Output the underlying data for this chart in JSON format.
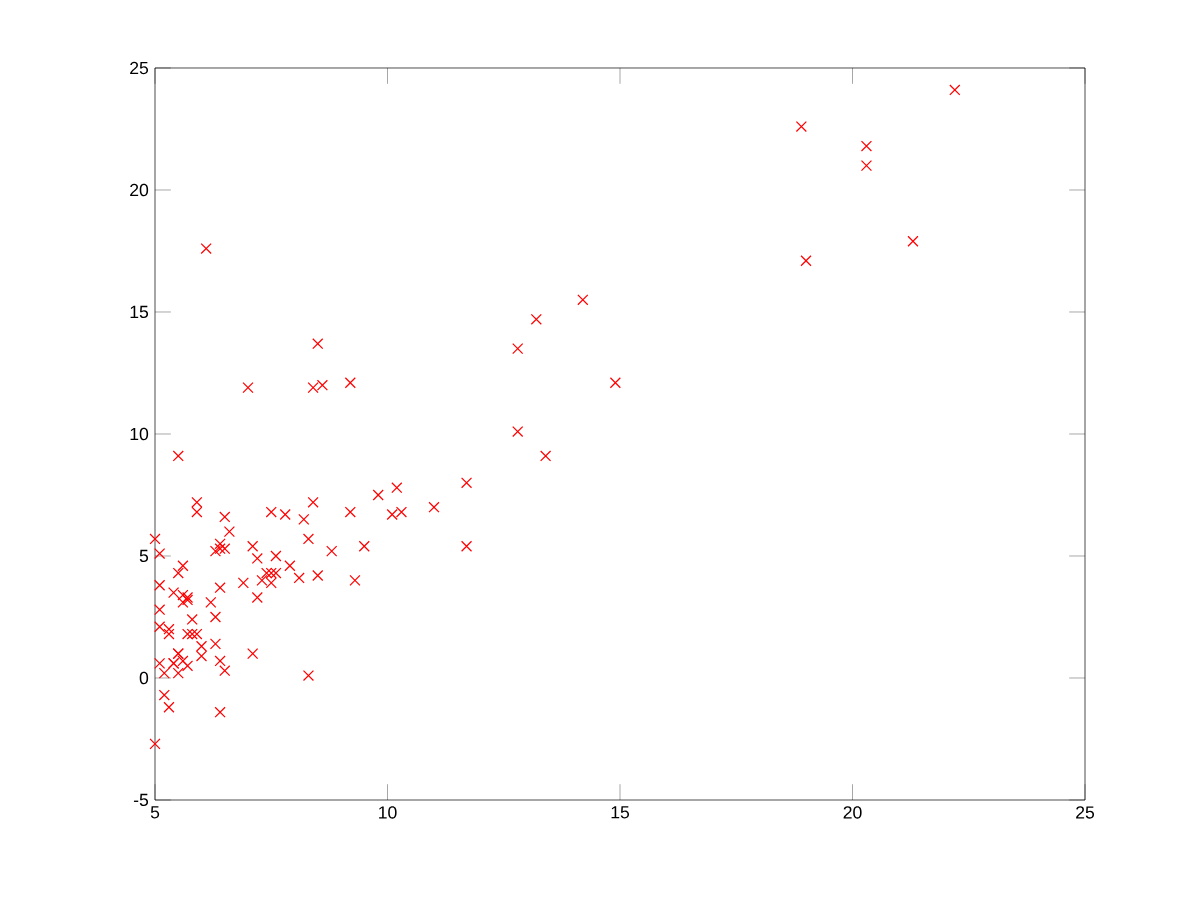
{
  "chart_data": {
    "type": "scatter",
    "color": "#ff0000",
    "marker": "cross",
    "x": [
      6.1,
      5.5,
      8.5,
      7.0,
      5.9,
      8.4,
      7.5,
      8.6,
      6.5,
      5.1,
      5.7,
      14.2,
      5.7,
      8.4,
      5.6,
      5.4,
      6.4,
      5.1,
      6.4,
      7.1,
      6.2,
      20.3,
      5.5,
      6.3,
      5.6,
      18.9,
      12.8,
      11.0,
      13.2,
      22.2,
      5.3,
      6.6,
      9.2,
      5.9,
      8.2,
      7.9,
      8.1,
      5.6,
      12.8,
      6.4,
      5.4,
      6.9,
      11.7,
      5.8,
      7.8,
      7.1,
      5.1,
      5.8,
      11.7,
      5.5,
      7.5,
      5.3,
      7.4,
      7.6,
      6.3,
      6.4,
      6.3,
      5.6,
      9.3,
      9.5,
      8.8,
      5.2,
      21.3,
      14.9,
      19.0,
      7.2,
      8.3,
      10.2,
      5.5,
      20.3,
      10.1,
      7.3,
      6.0,
      7.2,
      5.0,
      6.5,
      7.5,
      5.0,
      10.3,
      5.1,
      5.7,
      5.2,
      6.4,
      9.8,
      6.5,
      8.5,
      9.2,
      6.0,
      5.5,
      5.1,
      5.7,
      7.6,
      5.9,
      5.3,
      8.3,
      13.4,
      5.4
    ],
    "values": [
      17.6,
      9.1,
      13.7,
      11.9,
      6.8,
      11.9,
      4.3,
      12.0,
      6.6,
      3.8,
      3.3,
      15.5,
      3.2,
      7.2,
      0.7,
      3.5,
      5.3,
      0.6,
      3.7,
      5.4,
      3.1,
      21.8,
      4.3,
      5.2,
      3.1,
      22.6,
      13.5,
      7.0,
      14.7,
      24.1,
      -1.2,
      6.0,
      12.1,
      1.8,
      6.5,
      4.6,
      4.1,
      3.4,
      10.1,
      5.5,
      0.6,
      3.9,
      5.4,
      2.4,
      6.7,
      1.0,
      5.1,
      1.8,
      8.0,
      1.0,
      6.8,
      1.8,
      4.3,
      5.0,
      1.4,
      -1.4,
      2.5,
      4.6,
      4.0,
      5.4,
      5.2,
      -0.7,
      17.9,
      12.1,
      17.1,
      4.9,
      5.7,
      7.8,
      1.0,
      21.0,
      6.7,
      4.0,
      1.3,
      3.3,
      -2.7,
      0.3,
      3.9,
      5.7,
      6.8,
      2.1,
      0.5,
      0.2,
      0.7,
      7.5,
      5.3,
      4.2,
      6.8,
      0.9,
      0.2,
      2.8,
      1.8,
      4.3,
      7.2,
      2.0,
      0.1,
      9.1,
      0.6
    ],
    "xlim": [
      5,
      25
    ],
    "ylim": [
      -5,
      25
    ],
    "xticks": [
      5,
      10,
      15,
      20,
      25
    ],
    "yticks": [
      -5,
      0,
      5,
      10,
      15,
      20,
      25
    ]
  }
}
